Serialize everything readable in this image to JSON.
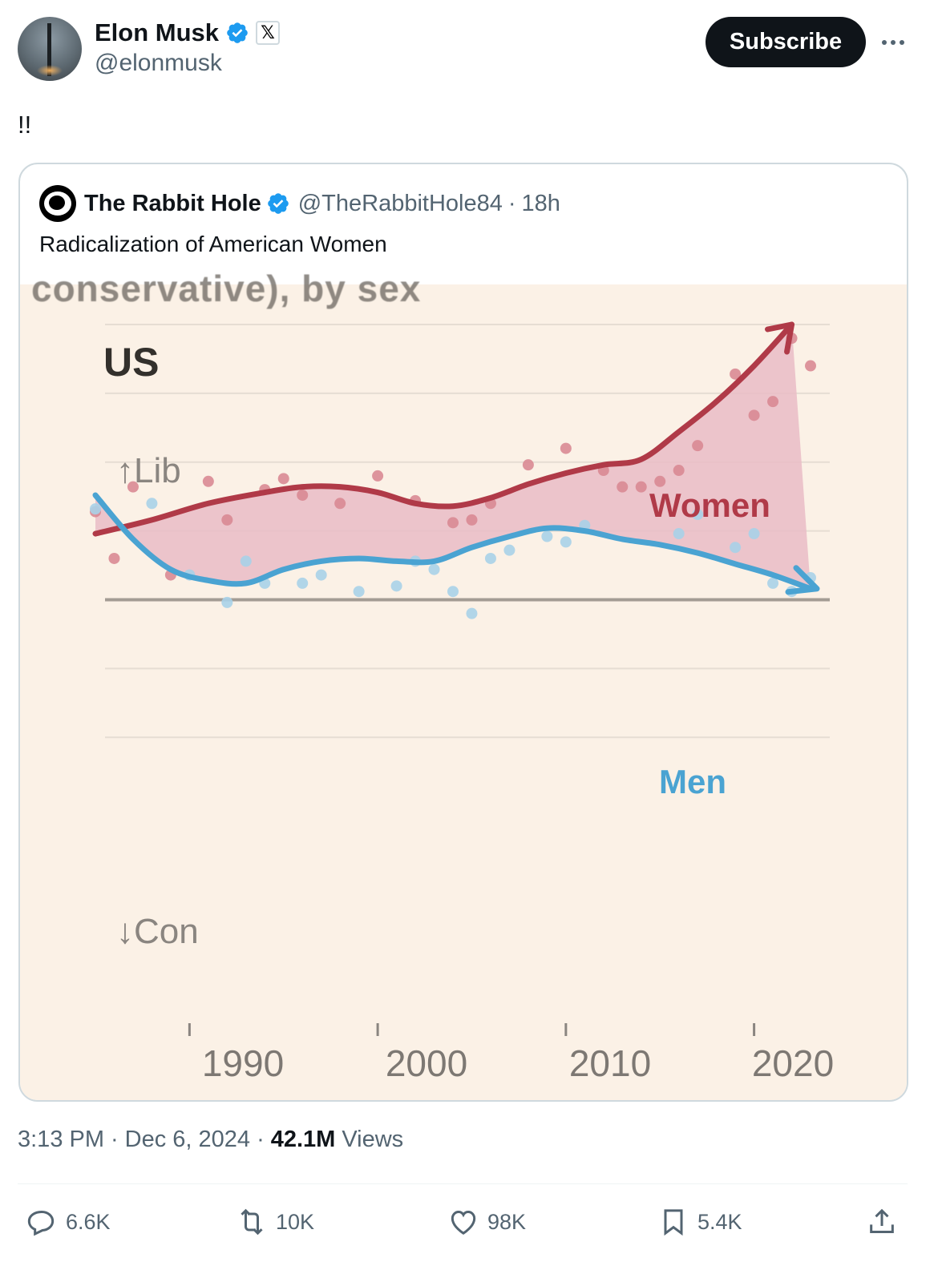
{
  "author": {
    "display_name": "Elon Musk",
    "handle": "@elonmusk",
    "affiliate_badge": "𝕏"
  },
  "subscribe_label": "Subscribe",
  "tweet_text": "!!",
  "quote": {
    "display_name": "The Rabbit Hole",
    "handle": "@TheRabbitHole84",
    "separator": "·",
    "time": "18h",
    "text": "Radicalization of American Women"
  },
  "chart_data": {
    "type": "line",
    "subtitle_fragment": "conservative), by sex",
    "region": "US",
    "axis_top_label": "↑Lib",
    "axis_bottom_label": "↓Con",
    "x_ticks": [
      "1990",
      "2000",
      "2010",
      "2020"
    ],
    "xlim": [
      1985,
      2023
    ],
    "ylim": [
      -1,
      1
    ],
    "y_gridlines": [
      1,
      0.75,
      0.5,
      0.25,
      0,
      -0.25,
      -0.5
    ],
    "colors": {
      "women": "#b03a48",
      "men": "#4aa3d2",
      "fill": "#e9bcc6",
      "background": "#fbf1e6"
    },
    "series": [
      {
        "name": "Women",
        "x": [
          1985,
          1988,
          1991,
          1994,
          1996,
          1998,
          2000,
          2002,
          2004,
          2006,
          2008,
          2010,
          2012,
          2014,
          2016,
          2018,
          2020,
          2022
        ],
        "y": [
          0.24,
          0.29,
          0.35,
          0.39,
          0.41,
          0.41,
          0.39,
          0.35,
          0.34,
          0.37,
          0.42,
          0.46,
          0.49,
          0.51,
          0.61,
          0.72,
          0.85,
          1.0
        ]
      },
      {
        "name": "Men",
        "x": [
          1985,
          1987,
          1989,
          1991,
          1993,
          1995,
          1997,
          1999,
          2001,
          2003,
          2005,
          2007,
          2009,
          2011,
          2013,
          2015,
          2017,
          2019,
          2021,
          2023
        ],
        "y": [
          0.38,
          0.22,
          0.11,
          0.07,
          0.06,
          0.11,
          0.14,
          0.15,
          0.14,
          0.14,
          0.19,
          0.23,
          0.26,
          0.25,
          0.22,
          0.2,
          0.17,
          0.13,
          0.09,
          0.04
        ]
      }
    ],
    "scatter": [
      {
        "group": "Women",
        "points": [
          [
            1985,
            0.32
          ],
          [
            1986,
            0.15
          ],
          [
            1987,
            0.41
          ],
          [
            1989,
            0.09
          ],
          [
            1991,
            0.43
          ],
          [
            1992,
            0.29
          ],
          [
            1994,
            0.4
          ],
          [
            1995,
            0.44
          ],
          [
            1996,
            0.38
          ],
          [
            1998,
            0.35
          ],
          [
            2000,
            0.45
          ],
          [
            2002,
            0.36
          ],
          [
            2004,
            0.28
          ],
          [
            2005,
            0.29
          ],
          [
            2006,
            0.35
          ],
          [
            2008,
            0.49
          ],
          [
            2010,
            0.55
          ],
          [
            2012,
            0.47
          ],
          [
            2013,
            0.41
          ],
          [
            2014,
            0.41
          ],
          [
            2015,
            0.43
          ],
          [
            2016,
            0.47
          ],
          [
            2017,
            0.56
          ],
          [
            2019,
            0.82
          ],
          [
            2020,
            0.67
          ],
          [
            2021,
            0.72
          ],
          [
            2022,
            0.95
          ],
          [
            2023,
            0.85
          ]
        ]
      },
      {
        "group": "Men",
        "points": [
          [
            1985,
            0.33
          ],
          [
            1988,
            0.35
          ],
          [
            1990,
            0.09
          ],
          [
            1992,
            -0.01
          ],
          [
            1993,
            0.14
          ],
          [
            1994,
            0.06
          ],
          [
            1996,
            0.06
          ],
          [
            1997,
            0.09
          ],
          [
            1999,
            0.03
          ],
          [
            2001,
            0.05
          ],
          [
            2002,
            0.14
          ],
          [
            2003,
            0.11
          ],
          [
            2004,
            0.03
          ],
          [
            2005,
            -0.05
          ],
          [
            2006,
            0.15
          ],
          [
            2007,
            0.18
          ],
          [
            2009,
            0.23
          ],
          [
            2010,
            0.21
          ],
          [
            2011,
            0.27
          ],
          [
            2016,
            0.24
          ],
          [
            2017,
            0.31
          ],
          [
            2019,
            0.19
          ],
          [
            2020,
            0.24
          ],
          [
            2021,
            0.06
          ],
          [
            2022,
            0.03
          ],
          [
            2023,
            0.08
          ]
        ]
      }
    ]
  },
  "meta": {
    "time": "3:13 PM",
    "separator": "·",
    "date": "Dec 6, 2024",
    "views_count": "42.1M",
    "views_label": "Views"
  },
  "actions": {
    "replies": "6.6K",
    "reposts": "10K",
    "likes": "98K",
    "bookmarks": "5.4K"
  }
}
